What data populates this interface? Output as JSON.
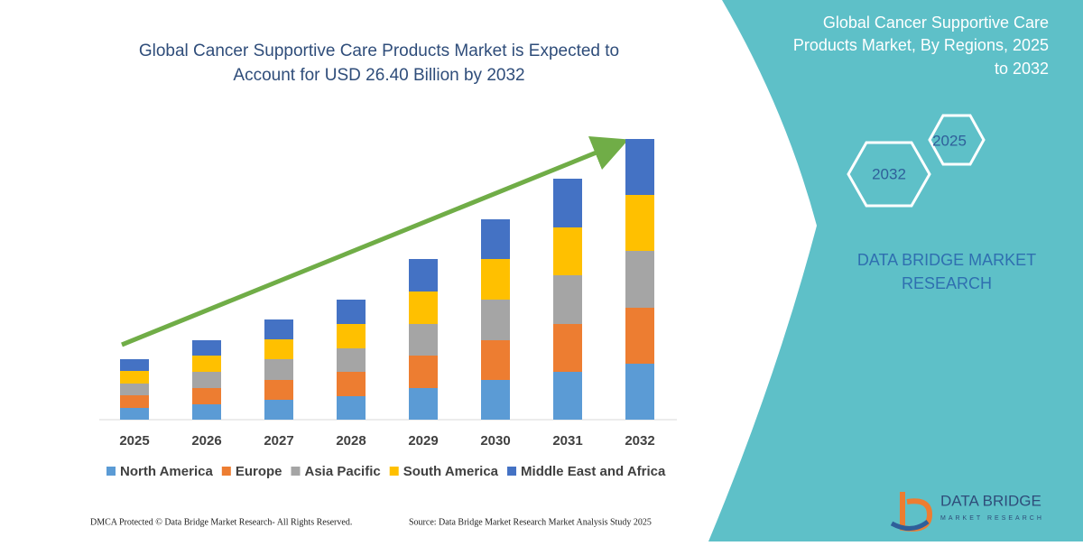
{
  "chart_data": {
    "type": "stacked-bar",
    "title": [
      "Global Cancer Supportive Care Products Market is Expected to",
      "Account for USD 26.40 Billion by 2032"
    ],
    "categories": [
      "2025",
      "2026",
      "2027",
      "2028",
      "2029",
      "2030",
      "2031",
      "2032"
    ],
    "series": [
      {
        "name": "North America",
        "color": "#5b9bd5",
        "values": [
          13,
          17,
          22,
          26,
          35,
          44,
          53,
          62
        ]
      },
      {
        "name": "Europe",
        "color": "#ed7d31",
        "values": [
          14,
          18,
          22,
          27,
          36,
          44,
          53,
          62
        ]
      },
      {
        "name": "Asia Pacific",
        "color": "#a5a5a5",
        "values": [
          13,
          18,
          23,
          26,
          35,
          45,
          54,
          63
        ]
      },
      {
        "name": "South America",
        "color": "#ffc000",
        "values": [
          14,
          18,
          22,
          27,
          36,
          45,
          53,
          62
        ]
      },
      {
        "name": "Middle East and Africa",
        "color": "#4472c4",
        "values": [
          13,
          17,
          22,
          27,
          36,
          44,
          54,
          62
        ]
      }
    ],
    "ylim": [
      0,
      320
    ],
    "legend": "bottom"
  },
  "panel": {
    "title": [
      "Global Cancer Supportive Care",
      "Products Market, By Regions, 2025",
      "to 2032"
    ],
    "hexagons": [
      "2025",
      "2032"
    ],
    "brand": [
      "DATA BRIDGE MARKET",
      "RESEARCH"
    ]
  },
  "logo": {
    "name": "DATA BRIDGE",
    "tagline": "MARKET RESEARCH"
  },
  "footer": {
    "left": "DMCA Protected © Data Bridge Market Research-  All Rights Reserved.",
    "right": "Source: Data Bridge Market Research  Market Analysis Study 2025"
  }
}
